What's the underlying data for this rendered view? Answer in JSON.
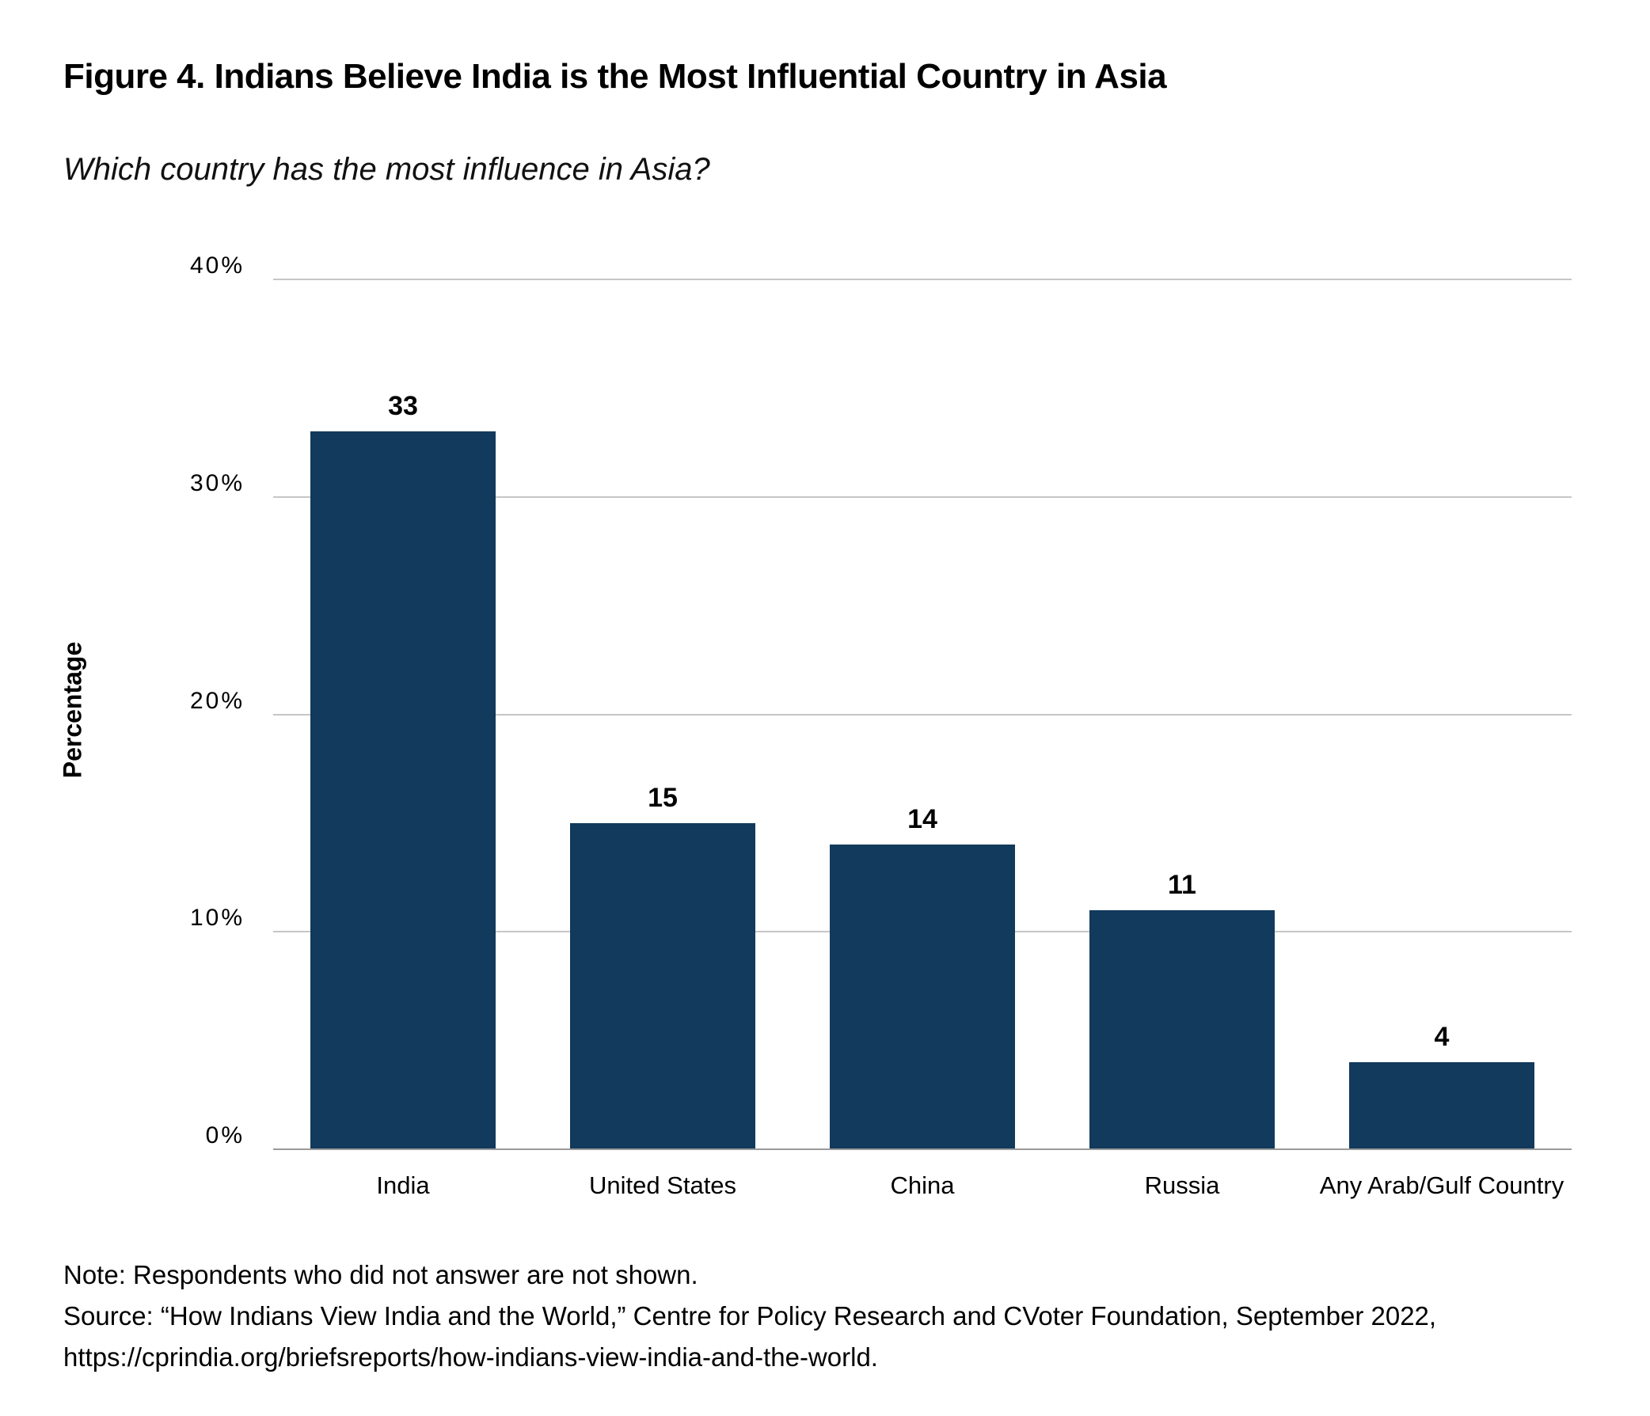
{
  "figure": {
    "title": "Figure 4. Indians Believe India is the Most Influential Country in Asia",
    "subtitle": "Which country has the most influence in Asia?",
    "note_lines": [
      "Note: Respondents who did not answer are not shown.",
      "Source: “How Indians View India and the World,” Centre for Policy Research and CVoter Foundation, September 2022,",
      "https://cprindia.org/briefsreports/how-indians-view-india-and-the-world."
    ]
  },
  "chart_data": {
    "type": "bar",
    "title": "Figure 4. Indians Believe India is the Most Influential Country in Asia",
    "subtitle": "Which country has the most influence in Asia?",
    "categories": [
      "India",
      "United States",
      "China",
      "Russia",
      "Any Arab/Gulf Country"
    ],
    "values": [
      33,
      15,
      14,
      11,
      4
    ],
    "value_labels": [
      "33",
      "15",
      "14",
      "11",
      "4"
    ],
    "xlabel": "",
    "ylabel": "Percentage",
    "ylim": [
      0,
      40
    ],
    "yticks": [
      0,
      10,
      20,
      30,
      40
    ],
    "ytick_labels": [
      "0%",
      "10%",
      "20%",
      "30%",
      "40%"
    ],
    "grid": true,
    "legend": "none",
    "bar_color": "#113A5C"
  },
  "colors": {
    "bar": "#113A5C",
    "gridline": "#c6c6c6",
    "axis_line": "#9a9a9a",
    "text": "#000000",
    "background": "#ffffff"
  }
}
